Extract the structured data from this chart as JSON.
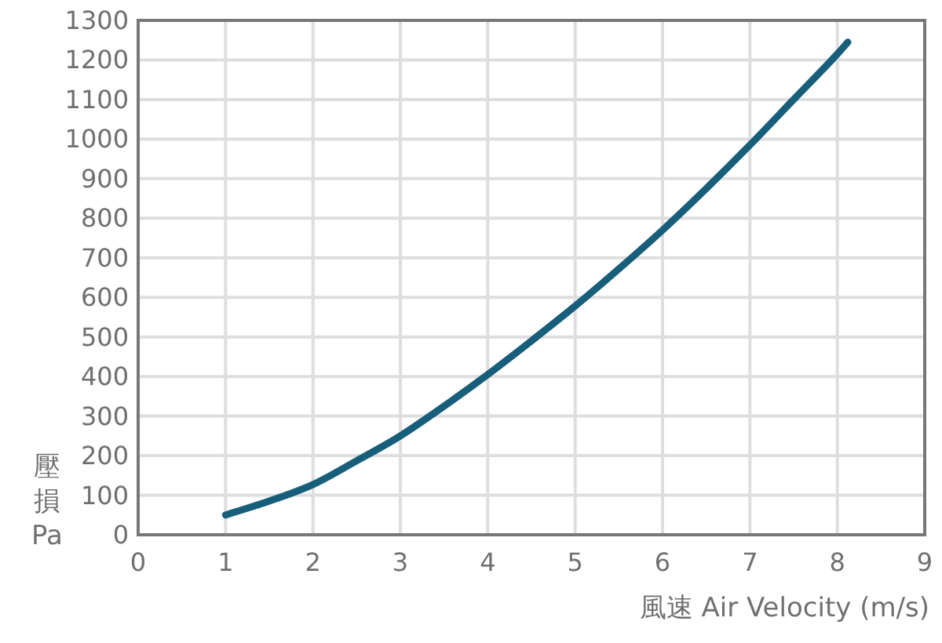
{
  "chart_data": {
    "type": "line",
    "xlabel": "風速 Air Velocity (m/s)",
    "ylabel": "壓損\nPa",
    "x": [
      1.0,
      1.5,
      2.0,
      2.5,
      3.0,
      3.5,
      4.0,
      4.5,
      5.0,
      5.5,
      6.0,
      6.5,
      7.0,
      7.5,
      8.0,
      8.12
    ],
    "series": [
      {
        "color": "#175e7a",
        "values": [
          50,
          85,
          127,
          187,
          250,
          325,
          405,
          490,
          578,
          672,
          770,
          875,
          985,
          1100,
          1215,
          1245
        ]
      }
    ],
    "xlim": [
      0,
      9
    ],
    "xticks": [
      0,
      1,
      2,
      3,
      4,
      5,
      6,
      7,
      8,
      9
    ],
    "ylim": [
      0,
      1300
    ],
    "yticks": [
      0,
      100,
      200,
      300,
      400,
      500,
      600,
      700,
      800,
      900,
      1000,
      1100,
      1200,
      1300
    ],
    "grid": true,
    "line_style": "solid"
  }
}
